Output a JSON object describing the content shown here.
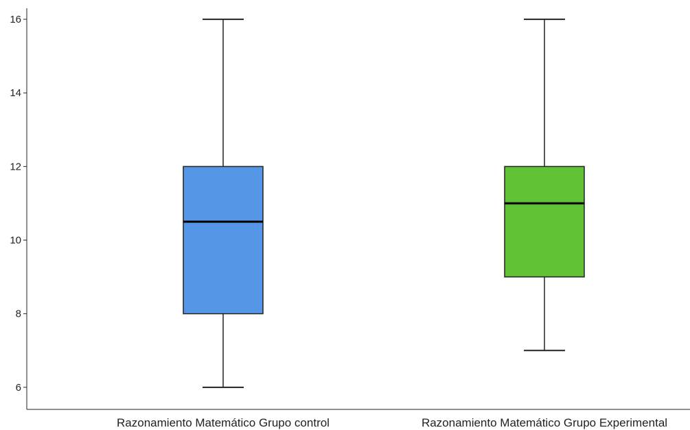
{
  "chart_data": {
    "type": "boxplot",
    "title": "",
    "xlabel": "",
    "ylabel": "",
    "ylim": [
      5.4,
      16.3
    ],
    "yticks": [
      6,
      8,
      10,
      12,
      14,
      16
    ],
    "grid": false,
    "categories": [
      "Razonamiento Matemático Grupo control",
      "Razonamiento Matemático Grupo Experimental"
    ],
    "boxes": [
      {
        "min": 6,
        "q1": 8,
        "median": 10.5,
        "q3": 12,
        "max": 16,
        "color": "#5596e6"
      },
      {
        "min": 7,
        "q1": 9,
        "median": 11,
        "q3": 12,
        "max": 16,
        "color": "#62c236"
      }
    ]
  }
}
